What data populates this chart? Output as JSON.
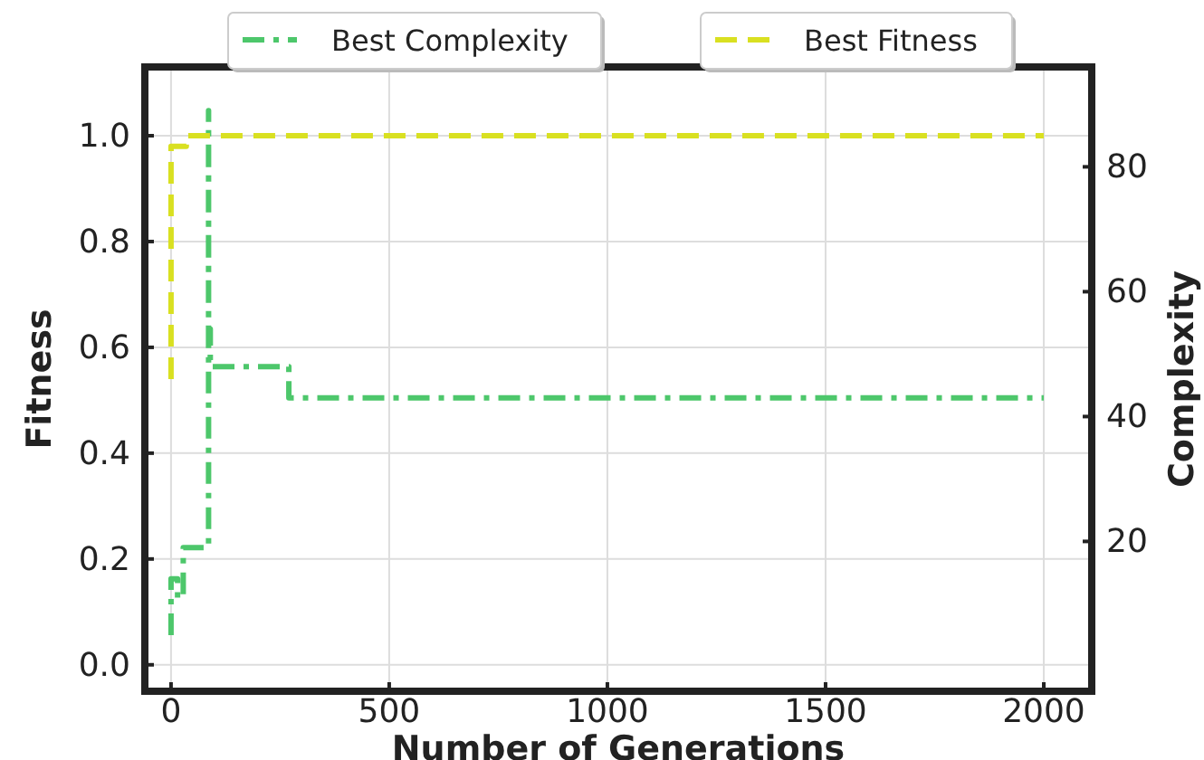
{
  "chart_data": {
    "type": "line",
    "xlabel": "Number of Generations",
    "ylabel": "Fitness",
    "y2label": "Complexity",
    "xlim": [
      -60,
      2110
    ],
    "xticks": [
      0,
      500,
      1000,
      1500,
      2000
    ],
    "ylim": [
      -0.05,
      1.13
    ],
    "yticks": [
      {
        "value": 0,
        "label": "0.0"
      },
      {
        "value": 0.2,
        "label": "0.2"
      },
      {
        "value": 0.4,
        "label": "0.4"
      },
      {
        "value": 0.6,
        "label": "0.6"
      },
      {
        "value": 0.8,
        "label": "0.8"
      },
      {
        "value": 1,
        "label": "1.0"
      }
    ],
    "y2lim": [
      -4,
      96
    ],
    "y2ticks": [
      20,
      40,
      60,
      80
    ],
    "grid": true,
    "legend": "top",
    "series": [
      {
        "name": "Best Complexity",
        "color": "#4dc76b",
        "axis": "y2",
        "line_style": "dashdot",
        "x": [
          0,
          0,
          15,
          15,
          28,
          28,
          86,
          86,
          86,
          90,
          90,
          270,
          270,
          2000
        ],
        "values": [
          5,
          14,
          14,
          11,
          11,
          19,
          19,
          89,
          54,
          54,
          48,
          48,
          43,
          43
        ]
      },
      {
        "name": "Best Fitness",
        "color": "#d9e021",
        "line_style": "dashed",
        "x": [
          0,
          0,
          35,
          35,
          2000
        ],
        "values": [
          0.54,
          0.98,
          0.98,
          1.0,
          1.0
        ]
      }
    ]
  }
}
